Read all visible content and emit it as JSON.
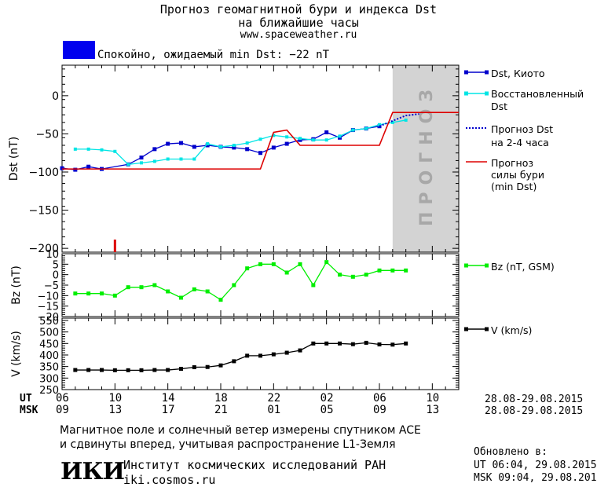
{
  "header": {
    "title_line1": "Прогноз геомагнитной бури и индекса Dst",
    "title_line2": "на ближайшие часы",
    "url": "www.spaceweather.ru"
  },
  "status": {
    "color": "#0000ee",
    "text": "Спокойно, ожидаемый min Dst: −22 nT"
  },
  "legend": {
    "dst_kyoto": "Dst, Киото",
    "dst_restored_1": "Восстановленный",
    "dst_restored_2": "Dst",
    "forecast_1": "Прогноз Dst",
    "forecast_2": "на 2-4 часа",
    "storm_1": "Прогноз",
    "storm_2": "силы бури",
    "storm_3": "(min Dst)",
    "bz": "Bz (nT, GSM)",
    "v": "V (km/s)"
  },
  "forecast_label": "ПРОГНОЗ",
  "footer": {
    "ut_label": "UT",
    "msk_label": "MSK",
    "ut_ticks": [
      "06",
      "10",
      "14",
      "18",
      "22",
      "02",
      "06",
      "10"
    ],
    "msk_ticks": [
      "09",
      "13",
      "17",
      "21",
      "01",
      "05",
      "09",
      "13"
    ],
    "date_range_ut": "28.08-29.08.2015",
    "date_range_msk": "28.08-29.08.2015",
    "note_line1": "Магнитное поле и солнечный ветер измерены спутником ACE",
    "note_line2": "и сдвинуты вперед, учитывая распространение L1-Земля",
    "logo": "ИКИ",
    "institute": "Институт космических исследований РАН",
    "site": "iki.cosmos.ru",
    "updated_label": "Обновлено в:",
    "updated_ut": "UT  06:04, 29.08.2015",
    "updated_msk": "MSK 09:04, 29.08.2015"
  },
  "colors": {
    "dst_kyoto": "#0000cc",
    "dst_restored": "#00e5e5",
    "forecast_dst": "#0000cc",
    "storm": "#dd0000",
    "bz": "#00ee00",
    "v": "#000000",
    "forecast_bg": "#d3d3d3"
  },
  "chart_data": [
    {
      "type": "line",
      "ylabel": "Dst (nT)",
      "xlim": [
        0,
        30
      ],
      "ylim": [
        -205,
        40
      ],
      "yticks": [
        0,
        -50,
        -100,
        -150,
        -200
      ],
      "forecast_region_x": [
        25,
        30
      ],
      "series": [
        {
          "name": "Dst, Киото",
          "x": [
            0,
            1,
            2,
            3,
            5,
            6,
            7,
            8,
            9,
            10,
            11,
            12,
            13,
            14,
            15,
            16,
            17,
            18,
            19,
            20,
            21,
            22,
            23,
            24
          ],
          "y": [
            -95,
            -97,
            -93,
            -96,
            -90,
            -81,
            -70,
            -63,
            -62,
            -67,
            -65,
            -67,
            -68,
            -70,
            -75,
            -68,
            -63,
            -58,
            -57,
            -48,
            -55,
            -45,
            -43,
            -40
          ]
        },
        {
          "name": "Восстановленный Dst",
          "x": [
            1,
            2,
            3,
            4,
            5,
            6,
            7,
            8,
            9,
            10,
            11,
            12,
            13,
            14,
            15,
            16,
            17,
            18,
            19,
            20,
            21,
            22,
            23,
            24,
            25,
            26
          ],
          "y": [
            -70,
            -70,
            -71,
            -73,
            -90,
            -88,
            -86,
            -83,
            -83,
            -83,
            -63,
            -67,
            -65,
            -62,
            -57,
            -52,
            -54,
            -56,
            -58,
            -58,
            -53,
            -45,
            -43,
            -38,
            -35,
            -32
          ]
        },
        {
          "name": "Прогноз Dst на 2-4 часа",
          "x": [
            24,
            25,
            26,
            27
          ],
          "y": [
            -40,
            -33,
            -26,
            -24
          ]
        },
        {
          "name": "Прогноз силы бури (min Dst)",
          "x": [
            0,
            1,
            2,
            3,
            4,
            5,
            6,
            7,
            8,
            9,
            10,
            11,
            12,
            13,
            14,
            15,
            16,
            17,
            18,
            19,
            20,
            21,
            22,
            23,
            24,
            25,
            26,
            27,
            28,
            29,
            30
          ],
          "y": [
            -96,
            -96,
            -96,
            -96,
            -96,
            -96,
            -96,
            -96,
            -96,
            -96,
            -96,
            -96,
            -96,
            -96,
            -96,
            -96,
            -48,
            -45,
            -65,
            -65,
            -65,
            -65,
            -65,
            -65,
            -65,
            -22,
            -22,
            -22,
            -22,
            -22,
            -22
          ],
          "step": true
        }
      ],
      "markers": [
        {
          "x": 4,
          "label": "red tick",
          "color": "#dd0000"
        }
      ]
    },
    {
      "type": "line",
      "ylabel": "Bz (nT)",
      "ylim": [
        -20,
        10
      ],
      "yticks": [
        10,
        5,
        0,
        -5,
        -10,
        -15,
        -20
      ],
      "series": [
        {
          "name": "Bz (nT, GSM)",
          "x": [
            1,
            2,
            3,
            4,
            5,
            6,
            7,
            8,
            9,
            10,
            11,
            12,
            13,
            14,
            15,
            16,
            17,
            18,
            19,
            20,
            21,
            22,
            23,
            24,
            25,
            26
          ],
          "y": [
            -9,
            -9,
            -9,
            -10,
            -6,
            -6,
            -5,
            -8,
            -11,
            -7,
            -8,
            -12,
            -5,
            3,
            5,
            5,
            1,
            5,
            -5,
            6,
            0,
            -1,
            0,
            2,
            2,
            2
          ]
        }
      ]
    },
    {
      "type": "line",
      "ylabel": "V (km/s)",
      "ylim": [
        250,
        560
      ],
      "yticks": [
        550,
        500,
        450,
        400,
        350,
        300,
        250
      ],
      "series": [
        {
          "name": "V (km/s)",
          "x": [
            1,
            2,
            3,
            4,
            5,
            6,
            7,
            8,
            9,
            10,
            11,
            12,
            13,
            14,
            15,
            16,
            17,
            18,
            19,
            20,
            21,
            22,
            23,
            24,
            25,
            26
          ],
          "y": [
            335,
            335,
            335,
            334,
            334,
            334,
            335,
            335,
            340,
            347,
            348,
            355,
            373,
            397,
            397,
            403,
            410,
            420,
            450,
            450,
            450,
            447,
            453,
            446,
            445,
            450
          ]
        }
      ]
    }
  ]
}
